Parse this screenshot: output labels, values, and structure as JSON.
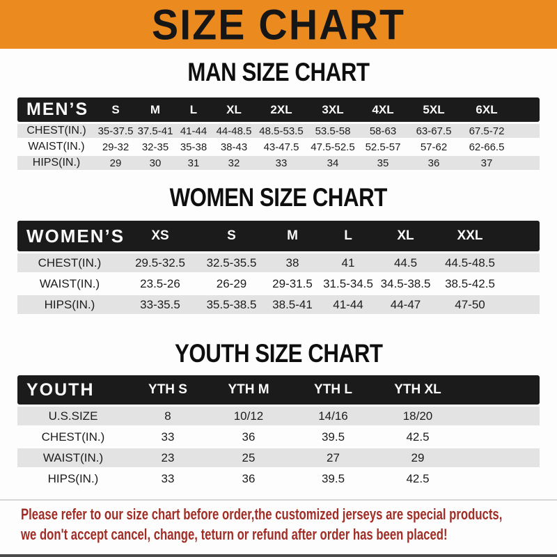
{
  "banner": {
    "title": "SIZE CHART",
    "background": "#EA8A1F",
    "text_color": "#161616"
  },
  "chart_data": [
    {
      "type": "table",
      "title": "MAN SIZE CHART",
      "header_label": "MEN’S",
      "columns": [
        "S",
        "M",
        "L",
        "XL",
        "2XL",
        "3XL",
        "4XL",
        "5XL",
        "6XL"
      ],
      "rows": [
        {
          "label": "CHEST(IN.)",
          "values": [
            "35-37.5",
            "37.5-41",
            "41-44",
            "44-48.5",
            "48.5-53.5",
            "53.5-58",
            "58-63",
            "63-67.5",
            "67.5-72"
          ]
        },
        {
          "label": "WAIST(IN.)",
          "values": [
            "29-32",
            "32-35",
            "35-38",
            "38-43",
            "43-47.5",
            "47.5-52.5",
            "52.5-57",
            "57-62",
            "62-66.5"
          ]
        },
        {
          "label": "HIPS(IN.)",
          "values": [
            "29",
            "30",
            "31",
            "32",
            "33",
            "34",
            "35",
            "36",
            "37"
          ]
        }
      ]
    },
    {
      "type": "table",
      "title": "WOMEN SIZE CHART",
      "header_label": "WOMEN’S",
      "columns": [
        "XS",
        "S",
        "M",
        "L",
        "XL",
        "XXL"
      ],
      "rows": [
        {
          "label": "CHEST(IN.)",
          "values": [
            "29.5-32.5",
            "32.5-35.5",
            "38",
            "41",
            "44.5",
            "44.5-48.5"
          ]
        },
        {
          "label": "WAIST(IN.)",
          "values": [
            "23.5-26",
            "26-29",
            "29-31.5",
            "31.5-34.5",
            "34.5-38.5",
            "38.5-42.5"
          ]
        },
        {
          "label": "HIPS(IN.)",
          "values": [
            "33-35.5",
            "35.5-38.5",
            "38.5-41",
            "41-44",
            "44-47",
            "47-50"
          ]
        }
      ]
    },
    {
      "type": "table",
      "title": "YOUTH SIZE CHART",
      "header_label": "YOUTH",
      "columns": [
        "YTH S",
        "YTH M",
        "YTH L",
        "YTH XL"
      ],
      "rows": [
        {
          "label": "U.S.SIZE",
          "values": [
            "8",
            "10/12",
            "14/16",
            "18/20"
          ]
        },
        {
          "label": "CHEST(IN.)",
          "values": [
            "33",
            "36",
            "39.5",
            "42.5"
          ]
        },
        {
          "label": "WAIST(IN.)",
          "values": [
            "23",
            "25",
            "27",
            "29"
          ]
        },
        {
          "label": "HIPS(IN.)",
          "values": [
            "33",
            "36",
            "39.5",
            "42.5"
          ]
        }
      ]
    }
  ],
  "footer_note": {
    "line1": "Please refer to our size chart before order,the customized jerseys are special products,",
    "line2": "we don't accept cancel, change, teturn or refund after order has been placed!",
    "color": "#A02E26"
  },
  "colors": {
    "banner_orange": "#EA8A1F",
    "header_black": "#1B1B1B",
    "row_gray": "#E3E3E3",
    "note_red": "#A02E26",
    "bottom_bar": "#4B4B4B"
  }
}
